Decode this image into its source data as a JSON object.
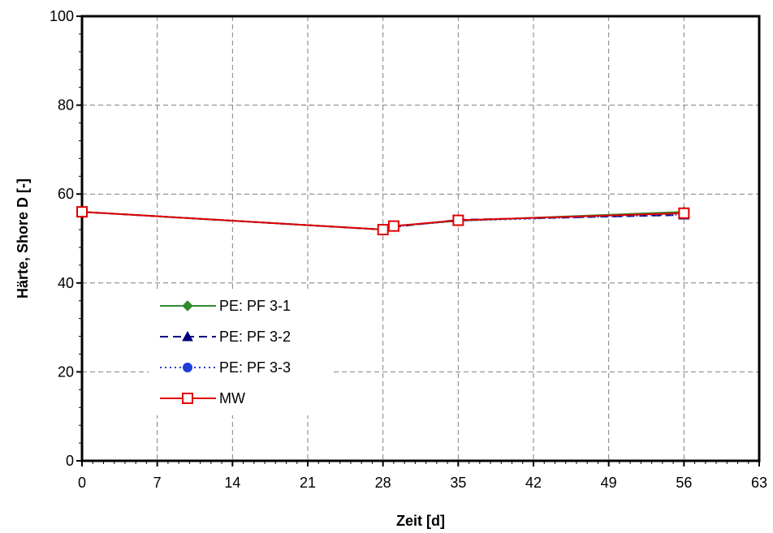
{
  "chart_data": {
    "type": "line",
    "xlabel": "Zeit [d]",
    "ylabel": "Härte, Shore D [-]",
    "xlim": [
      0,
      63
    ],
    "ylim": [
      0,
      100
    ],
    "xticks": [
      0,
      7,
      14,
      21,
      28,
      35,
      42,
      49,
      56,
      63
    ],
    "yticks": [
      0,
      20,
      40,
      60,
      80,
      100
    ],
    "grid": true,
    "legend_position": "left-bottom inside",
    "series": [
      {
        "name": "PE: PF 3-1",
        "color": "#2e8b2e",
        "marker": "diamond",
        "dash": "solid",
        "x": [
          0,
          28,
          29,
          35,
          56
        ],
        "y": [
          56,
          52,
          52.8,
          54,
          56
        ]
      },
      {
        "name": "PE: PF 3-2",
        "color": "#000080",
        "marker": "triangle",
        "dash": "dashed",
        "x": [
          0,
          28,
          29,
          35,
          56
        ],
        "y": [
          56,
          52,
          52.6,
          54.2,
          55.3
        ]
      },
      {
        "name": "PE: PF 3-3",
        "color": "#1f3fd6",
        "marker": "circle",
        "dash": "dotted",
        "x": [
          0,
          28,
          29,
          35,
          56
        ],
        "y": [
          56,
          52,
          52.7,
          54,
          55.4
        ]
      },
      {
        "name": "MW",
        "color": "#e00000",
        "marker": "square-open",
        "dash": "solid",
        "x": [
          0,
          28,
          29,
          35,
          56
        ],
        "y": [
          56,
          52,
          52.8,
          54.1,
          55.7
        ]
      }
    ]
  }
}
